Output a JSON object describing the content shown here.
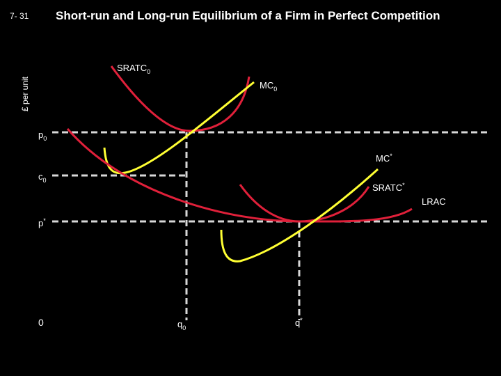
{
  "slide_number": "7- 31",
  "title": "Short-run and Long-run Equilibrium of a Firm in Perfect Competition",
  "y_axis_label": "£ per unit",
  "labels": {
    "sratc0": {
      "base": "SRATC",
      "sub": "0"
    },
    "mc0": {
      "base": "MC",
      "sub": "0"
    },
    "p0": {
      "base": "p",
      "sub": "0"
    },
    "mc_star": {
      "base": "MC",
      "sup": "*"
    },
    "c0": {
      "base": "c",
      "sub": "0"
    },
    "sratc_star": {
      "base": "SRATC",
      "sup": "*"
    },
    "lrac": "LRAC",
    "p_star": {
      "base": "p",
      "sup": "*"
    },
    "origin": "0",
    "q0": {
      "base": "q",
      "sub": "0"
    },
    "q_star": {
      "base": "q",
      "sup": "*"
    }
  }
}
